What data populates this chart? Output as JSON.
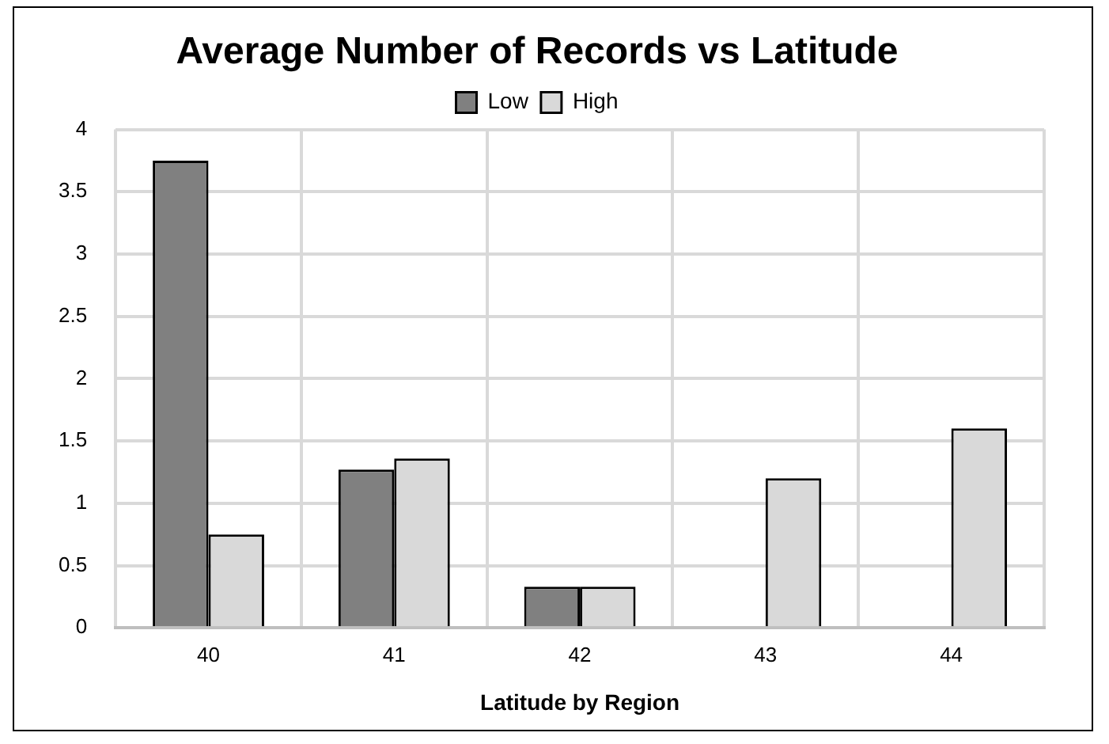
{
  "chart_data": {
    "type": "bar",
    "title": "Average Number of Records vs Latitude",
    "xlabel": "Latitude by Region",
    "categories": [
      "40",
      "41",
      "42",
      "43",
      "44"
    ],
    "series": [
      {
        "name": "Low",
        "color": "#808080",
        "values": [
          3.75,
          1.27,
          0.33,
          0,
          0
        ]
      },
      {
        "name": "High",
        "color": "#d9d9d9",
        "values": [
          0.75,
          1.36,
          0.33,
          1.2,
          1.6
        ]
      }
    ],
    "ylim": [
      0,
      4
    ],
    "yticks": [
      0,
      0.5,
      1,
      1.5,
      2,
      2.5,
      3,
      3.5,
      4
    ],
    "grid": true,
    "legend": "top"
  }
}
